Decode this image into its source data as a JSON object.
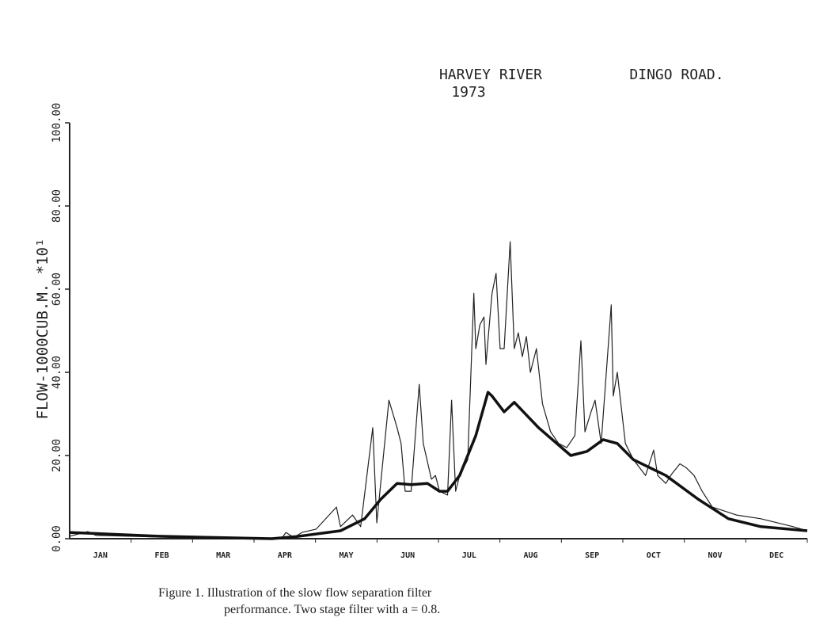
{
  "chart_data": {
    "type": "line",
    "title": "HARVEY RIVER",
    "title_right": "DINGO ROAD.",
    "subtitle": "1973",
    "ylabel": "FLOW-1000CUB.M. *10¹",
    "categories": [
      "JAN",
      "FEB",
      "MAR",
      "APR",
      "MAY",
      "JUN",
      "JUL",
      "AUG",
      "SEP",
      "OCT",
      "NOV",
      "DEC"
    ],
    "xlim": [
      0,
      365
    ],
    "ylim": [
      0,
      100
    ],
    "yticks": [
      {
        "value": 0,
        "label": "0.00"
      },
      {
        "value": 20,
        "label": "20.00"
      },
      {
        "value": 40,
        "label": "40.00"
      },
      {
        "value": 60,
        "label": "60.00"
      },
      {
        "value": 80,
        "label": "80.00"
      },
      {
        "value": 100,
        "label": "100.00"
      }
    ],
    "series": [
      {
        "color": "#222222",
        "width": 1.2,
        "x": [
          0,
          9,
          13,
          44,
          75,
          105,
          107,
          111,
          115,
          122,
          132,
          134,
          140,
          144,
          150,
          152,
          158,
          162,
          164,
          166,
          169,
          173,
          175,
          179,
          181,
          183,
          187,
          189,
          191,
          193,
          197,
          200,
          201,
          203,
          205,
          206,
          208,
          209,
          211,
          213,
          215,
          218,
          220,
          222,
          224,
          226,
          228,
          231,
          234,
          238,
          242,
          246,
          250,
          253,
          255,
          258,
          260,
          263,
          268,
          269,
          271,
          275,
          279,
          285,
          289,
          291,
          295,
          298,
          302,
          305,
          309,
          313,
          318,
          330,
          342,
          358,
          365
        ],
        "values": [
          0.6,
          1.7,
          0.8,
          0.4,
          0.2,
          0.1,
          1.5,
          0.3,
          1.5,
          2.3,
          7.6,
          2.9,
          5.7,
          2.9,
          26.7,
          3.8,
          33.3,
          26.7,
          22.9,
          11.4,
          11.4,
          37.1,
          22.9,
          14.3,
          15.2,
          11.4,
          10.5,
          33.3,
          11.4,
          15.2,
          19,
          59,
          45.7,
          51.4,
          53.3,
          41.9,
          53.3,
          59,
          63.8,
          45.7,
          45.7,
          71.4,
          45.7,
          49.5,
          43.8,
          48.6,
          40,
          45.7,
          32.4,
          25.7,
          22.9,
          21.9,
          24.8,
          47.6,
          25.7,
          30.5,
          33.3,
          22.9,
          56.2,
          34.3,
          40,
          22.9,
          19,
          15.2,
          21.3,
          15.2,
          13.3,
          15.6,
          18,
          17.1,
          15.2,
          11.4,
          7.6,
          5.7,
          4.8,
          2.9,
          1.9
        ]
      },
      {
        "color": "#111111",
        "width": 3.5,
        "x": [
          0,
          44,
          100,
          112,
          134,
          146,
          154,
          162,
          169,
          177,
          183,
          187,
          193,
          201,
          207,
          209,
          215,
          220,
          232,
          248,
          256,
          264,
          271,
          279,
          295,
          311,
          326,
          342,
          365
        ],
        "values": [
          1.5,
          0.6,
          0,
          0.5,
          1.9,
          4.8,
          9.5,
          13.3,
          13,
          13.3,
          11.4,
          11.4,
          15.2,
          24.8,
          35.2,
          34.3,
          30.5,
          32.8,
          26.7,
          20,
          21,
          23.8,
          22.9,
          19,
          15.2,
          9.5,
          4.8,
          2.9,
          1.9
        ]
      }
    ]
  },
  "caption": [
    "Figure 1.  Illustration of the slow flow separation filter",
    "performance.  Two stage filter with a = 0.8."
  ]
}
